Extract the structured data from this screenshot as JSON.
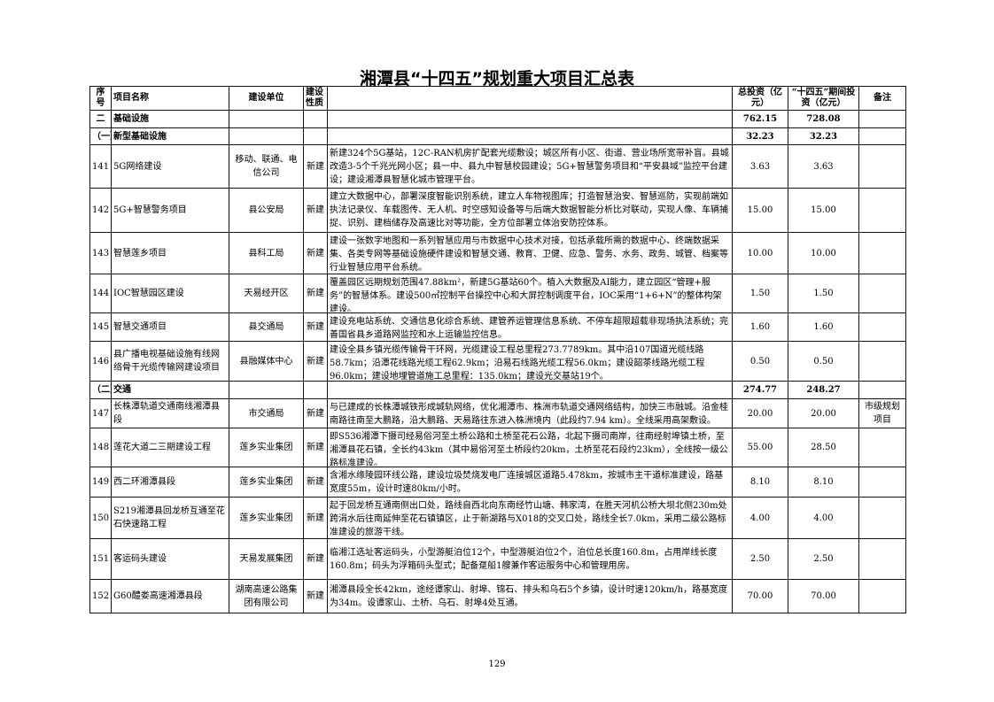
{
  "title": "湘潭县“十四五”规划重大项目汇总表",
  "headers": {
    "seq": "序号",
    "name": "项目名称",
    "unit": "建设单位",
    "nature": "建设性质",
    "desc": "",
    "total": "总投资（亿元）",
    "period": "“十四五”期间投资（亿元）",
    "remark": "备注"
  },
  "rows": [
    {
      "type": "section",
      "seq": "二",
      "name": "基础设施",
      "total": "762.15",
      "period": "728.08"
    },
    {
      "type": "section",
      "seq": "（一）",
      "name": "新型基础设施",
      "total": "32.23",
      "period": "32.23"
    },
    {
      "type": "item",
      "seq": "141",
      "name": "5G网络建设",
      "unit": "移动、联通、电信公司",
      "nature": "新建",
      "desc": "新建324个5G基站，12C-RAN机房扩配套光缆敷设；城区所有小区、街道、营业场所宽带补盲。县城改造3-5个千兆光网小区；县一中、县九中智慧校园建设；5G+智慧警务项目和“平安县域”监控平台建设；建设湘潭县智慧化城市管理平台。",
      "total": "3.63",
      "period": "3.63",
      "remark": ""
    },
    {
      "type": "item",
      "seq": "142",
      "name": "5G+智慧警务项目",
      "unit": "县公安局",
      "nature": "新建",
      "desc": "建立大数据中心，部署深度智能识别系统，建立人车物视图库；打造智慧治安、智慧巡防，实现前端如执法记录仪、车载图传、无人机、时空感知设备等与后端大数据智能分析比对联动，实现人像、车辆捕捉、识别、建档储存及高速比对等功能，全方位部署立体治安防控体系。",
      "total": "15.00",
      "period": "15.00",
      "remark": ""
    },
    {
      "type": "item",
      "seq": "143",
      "name": "智慧莲乡项目",
      "unit": "县科工局",
      "nature": "新建",
      "desc": "建设一张数字地图和一系列智慧应用与市数据中心技术对接，包括承载所需的数据中心、终端数据采集、各类专网等基础设施硬件建设和智慧交通、教育、卫健、应急、警务、水务、政务、城管、档案等行业智慧应用平台系统。",
      "total": "10.00",
      "period": "10.00",
      "remark": ""
    },
    {
      "type": "item",
      "seq": "144",
      "name": "IOC智慧园区建设",
      "unit": "天易经开区",
      "nature": "新建",
      "desc": "覆盖园区远期规划范围47.88km²，新建5G基站60个。植入大数据及AI能力，建立园区“管理+服务”的智慧体系。建设500㎡控制平台操控中心和大屏控制调度平台，IOC采用“1+6+N”的整体构架建设。",
      "total": "1.50",
      "period": "1.50",
      "remark": ""
    },
    {
      "type": "item",
      "seq": "145",
      "name": "智慧交通项目",
      "unit": "县交通局",
      "nature": "新建",
      "desc": "建设充电站系统、交通信息化综合系统、建管养运管理信息系统、不停车超限超载非现场执法系统；完善国省县乡道路网监控和水上运输监控信息。",
      "total": "1.60",
      "period": "1.60",
      "remark": ""
    },
    {
      "type": "item",
      "seq": "146",
      "name": "县广播电视基础设施有线网络骨干光缆传输网建设项目",
      "unit": "县融媒体中心",
      "nature": "新建",
      "desc": "建设全县乡镇光缆传输骨干环网，光缆建设工程总里程273.7789km。其中沿107国道光缆线路58.7km；沿潭花线路光缆工程62.9km；沿易石线路光缆工程56.0km；建设韶茶线路光缆工程96.0km；建设地埋管道施工总里程：135.0km；建设光交基站19个。",
      "total": "0.50",
      "period": "0.50",
      "remark": ""
    },
    {
      "type": "section",
      "seq": "（二）",
      "name": "交通",
      "total": "274.77",
      "period": "248.27"
    },
    {
      "type": "item",
      "seq": "147",
      "name": "长株潭轨道交通南线湘潭县段",
      "unit": "市交通局",
      "nature": "新建",
      "desc": "与已建成的长株潭城铁形成城轨网络，优化湘潭市、株洲市轨道交通网络结构，加快三市融城。沿金桂南路往南至大鹏路，沿大鹏路、天易路往东进入株洲境内（此段约7.94 km）。全线采用高架敷设。",
      "total": "20.00",
      "period": "20.00",
      "remark": "市级规划项目"
    },
    {
      "type": "item",
      "seq": "148",
      "name": "莲花大道二三期建设工程",
      "unit": "莲乡实业集团",
      "nature": "新建",
      "desc": "即S536湘潭下摄司经易俗河至土桥公路和土桥至花石公路，北起下摄司南岸，往南经射埠镇土桥，至湘潭县花石镇，全长约43km（其中易俗河至土桥段约20km，土桥至花石段约23km），全线按一级公路标准建设。",
      "total": "55.00",
      "period": "28.50",
      "remark": ""
    },
    {
      "type": "item",
      "seq": "149",
      "name": "西二环湘潭县段",
      "unit": "莲乡实业集团",
      "nature": "新建",
      "desc": "含湘水缘陵园环线公路，建设垃圾焚烧发电厂连接城区道路5.478km，按城市主干道标准建设，路基宽度55m，设计时速80km/小时。",
      "total": "8.10",
      "period": "8.10",
      "remark": ""
    },
    {
      "type": "item",
      "seq": "150",
      "name": "S219湘潭县回龙桥互通至花石快速路工程",
      "unit": "莲乡实业集团",
      "nature": "新建",
      "desc": "起于回龙桥互通南侧出口处，路线自西北向东南经竹山塘、韩家湾，在胜天河机公桥大坝北侧230m处跨涓水后往南延伸至花石镇镇区，止于新湖路与X018的交叉口处，路线全长7.0km，采用二级公路标准建设的旅游干线。",
      "total": "4.00",
      "period": "4.00",
      "remark": ""
    },
    {
      "type": "item",
      "seq": "151",
      "name": "客运码头建设",
      "unit": "天易发展集团",
      "nature": "新建",
      "desc": "临湘江选址客运码头，小型游艇泊位12个，中型游艇泊位2个，泊位总长度160.8m，占用岸线长度160.8m；码头为浮箱码头型式；配备趸船1艘兼作客运服务中心和管理用房。",
      "total": "2.50",
      "period": "2.50",
      "remark": ""
    },
    {
      "type": "item",
      "seq": "152",
      "name": "G60醴娄高速湘潭县段",
      "unit": "湖南高速公路集团有限公司",
      "nature": "新建",
      "desc": "湘潭县段全长42km，途经谭家山、射埠、锦石、排头和乌石5个乡镇，设计时速120km/h，路基宽度为34m。设谭家山、土桥、乌石、射埠4处互通。",
      "total": "70.00",
      "period": "70.00",
      "remark": ""
    }
  ],
  "page_number": "129"
}
